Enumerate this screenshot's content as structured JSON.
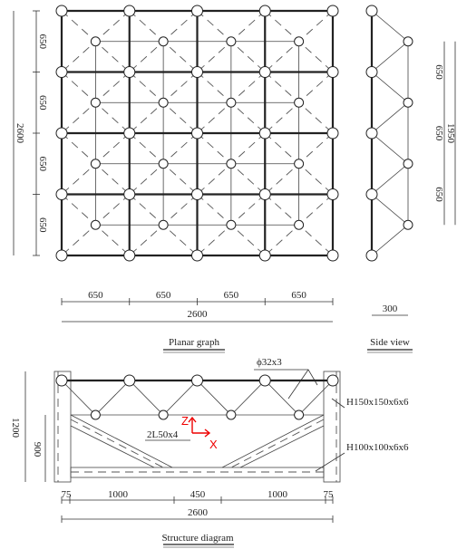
{
  "planar_graph": {
    "row_dims": [
      "650",
      "650",
      "650",
      "650"
    ],
    "total_height": "2600",
    "col_dims": [
      "650",
      "650",
      "650",
      "650"
    ],
    "total_width": "2600",
    "caption": "Planar graph"
  },
  "side_view": {
    "dims": [
      "650",
      "650",
      "650"
    ],
    "total": "1950",
    "width": "300",
    "caption": "Side view"
  },
  "structure_diagram": {
    "pipe": "ϕ32x3",
    "column": "H150x150x6x6",
    "beam": "H100x100x6x6",
    "brace": "2L50x4",
    "axis_z": "Z",
    "axis_x": "X",
    "height_dims": [
      "1200",
      "900"
    ],
    "width_dims": [
      "75",
      "1000",
      "450",
      "1000",
      "75"
    ],
    "total_width": "2600",
    "caption": "Structure diagram"
  }
}
